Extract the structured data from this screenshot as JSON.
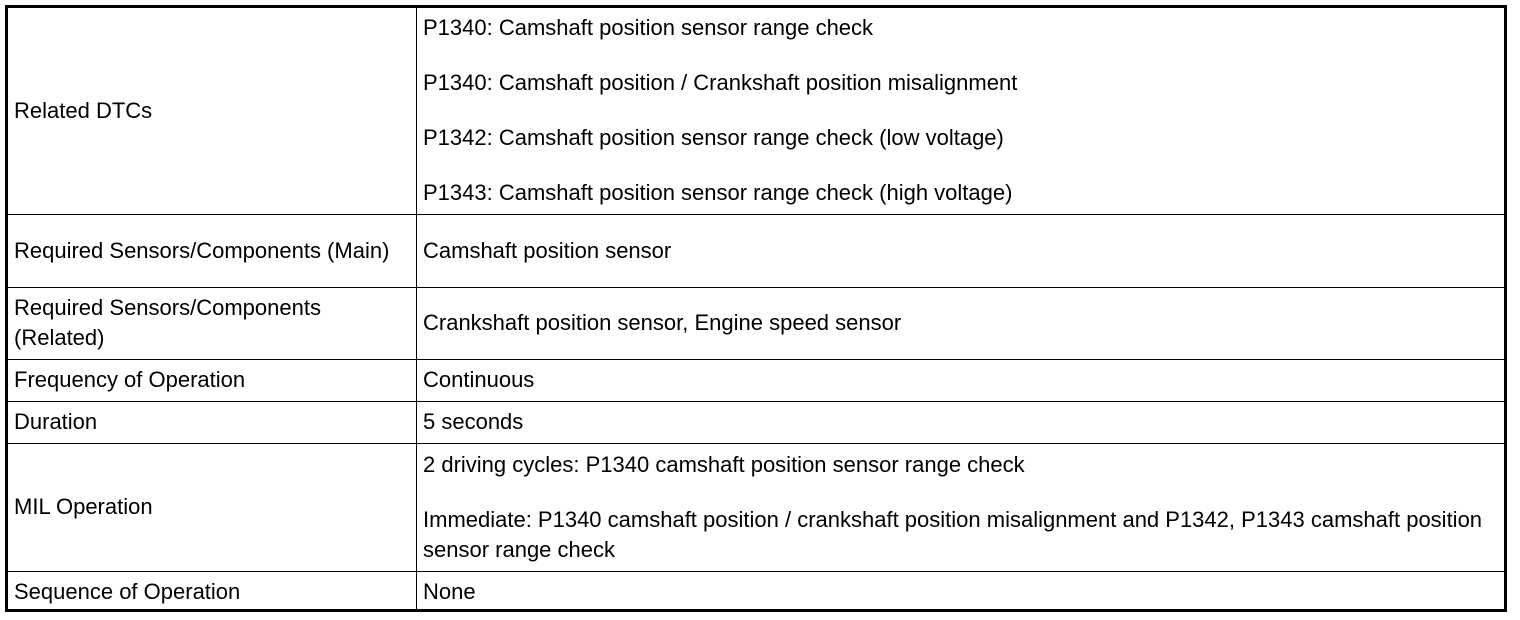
{
  "table": {
    "rows": [
      {
        "label": "Related DTCs",
        "values": [
          "P1340: Camshaft position sensor range check",
          "P1340: Camshaft position / Crankshaft position misalignment",
          "P1342: Camshaft position sensor range check (low voltage)",
          "P1343: Camshaft position sensor range check (high voltage)"
        ]
      },
      {
        "label": "Required Sensors/Components (Main)",
        "values": [
          "Camshaft position sensor"
        ]
      },
      {
        "label": "Required Sensors/Components (Related)",
        "values": [
          "Crankshaft position sensor, Engine speed sensor"
        ]
      },
      {
        "label": "Frequency of Operation",
        "values": [
          "Continuous"
        ]
      },
      {
        "label": "Duration",
        "values": [
          "5 seconds"
        ]
      },
      {
        "label": "MIL Operation",
        "values": [
          "2 driving cycles: P1340 camshaft position sensor range check",
          "Immediate: P1340 camshaft position / crankshaft position misalignment and P1342, P1343 camshaft position sensor range check"
        ]
      },
      {
        "label": "Sequence of Operation",
        "values": [
          "None"
        ]
      }
    ]
  }
}
